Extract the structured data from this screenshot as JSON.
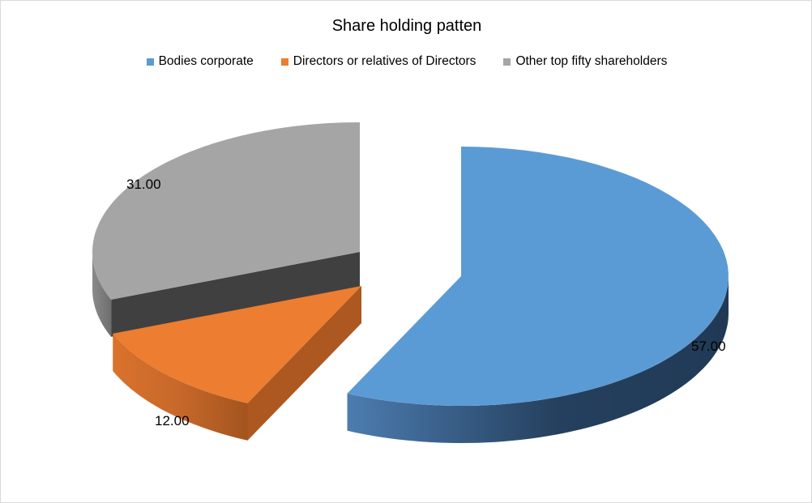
{
  "chart_data": {
    "type": "pie",
    "title": "Share holding patten",
    "series": [
      {
        "name": "",
        "categories": [
          "Bodies corporate",
          "Directors or relatives of Directors",
          "Other top fifty shareholders"
        ],
        "values": [
          57.0,
          12.0,
          31.0
        ],
        "labels": [
          "57.00",
          "12.00",
          "31.00"
        ]
      }
    ],
    "colors": [
      "#5b9bd5",
      "#ed7d31",
      "#a5a5a5"
    ],
    "legend_position": "top",
    "style": "3d-exploded"
  }
}
